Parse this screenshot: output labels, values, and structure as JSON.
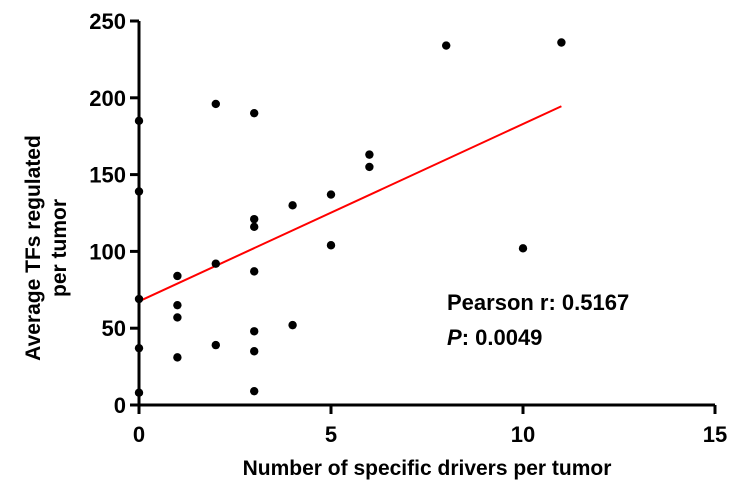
{
  "chart_data": {
    "type": "scatter",
    "xlabel": "Number of specific drivers per tumor",
    "ylabel": [
      "Average TFs regulated",
      "per tumor"
    ],
    "xlim": [
      0,
      15
    ],
    "ylim": [
      0,
      250
    ],
    "xticks": [
      0,
      5,
      10,
      15
    ],
    "yticks": [
      0,
      50,
      100,
      150,
      200,
      250
    ],
    "xtick_labels": [
      "0",
      "5",
      "10",
      "15"
    ],
    "ytick_labels": [
      "0",
      "50",
      "100",
      "150",
      "200",
      "250"
    ],
    "grid": false,
    "points": [
      {
        "x": 0,
        "y": 185
      },
      {
        "x": 0,
        "y": 139
      },
      {
        "x": 0,
        "y": 69
      },
      {
        "x": 0,
        "y": 37
      },
      {
        "x": 0,
        "y": 8
      },
      {
        "x": 1,
        "y": 84
      },
      {
        "x": 1,
        "y": 65
      },
      {
        "x": 1,
        "y": 57
      },
      {
        "x": 1,
        "y": 31
      },
      {
        "x": 2,
        "y": 196
      },
      {
        "x": 2,
        "y": 92
      },
      {
        "x": 2,
        "y": 39
      },
      {
        "x": 3,
        "y": 190
      },
      {
        "x": 3,
        "y": 121
      },
      {
        "x": 3,
        "y": 116
      },
      {
        "x": 3,
        "y": 87
      },
      {
        "x": 3,
        "y": 48
      },
      {
        "x": 3,
        "y": 35
      },
      {
        "x": 3,
        "y": 9
      },
      {
        "x": 4,
        "y": 130
      },
      {
        "x": 4,
        "y": 52
      },
      {
        "x": 5,
        "y": 137
      },
      {
        "x": 5,
        "y": 104
      },
      {
        "x": 6,
        "y": 163
      },
      {
        "x": 6,
        "y": 155
      },
      {
        "x": 8,
        "y": 234
      },
      {
        "x": 10,
        "y": 102
      },
      {
        "x": 11,
        "y": 236
      }
    ],
    "trendline": {
      "x": [
        0,
        11
      ],
      "y": [
        67.5,
        194.5
      ],
      "color": "#ff0000"
    },
    "point_color": "#000000",
    "annotations": {
      "pearson_label": "Pearson r: 0.5167",
      "p_label": "P",
      "p_value": ": 0.0049"
    }
  }
}
